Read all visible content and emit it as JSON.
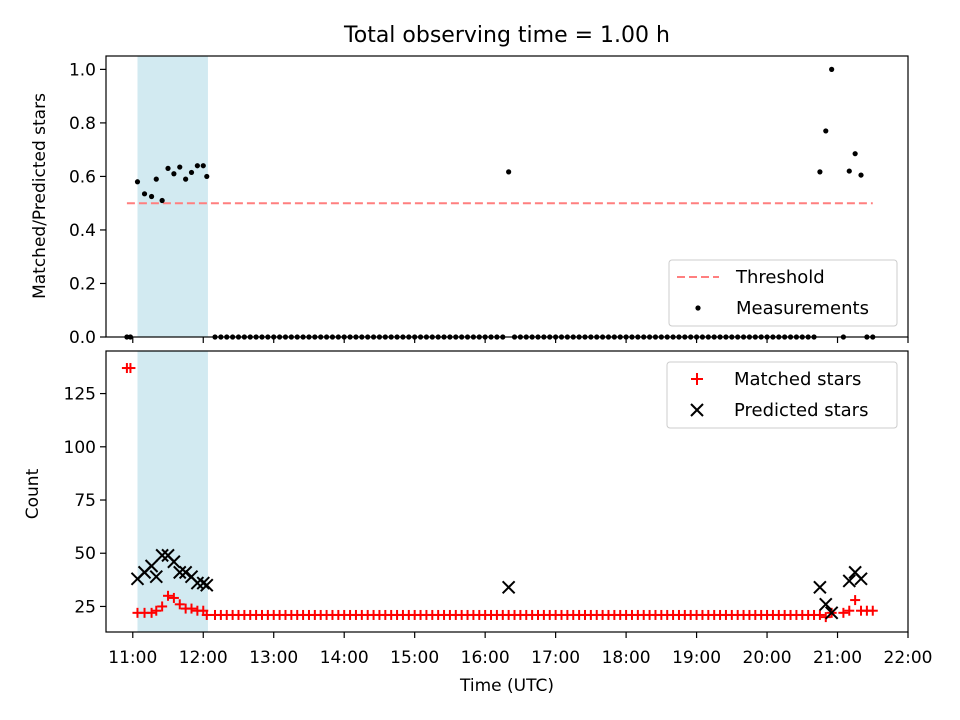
{
  "figure_title": "Total observing time = 1.00 h",
  "chart_data": [
    {
      "type": "scatter",
      "ylabel": "Matched/Predicted stars",
      "ylim": [
        0,
        1.05
      ],
      "yticks": [
        "0.0",
        "0.2",
        "0.4",
        "0.6",
        "0.8",
        "1.0"
      ],
      "x_range_hours": [
        10.62,
        22.0
      ],
      "shaded_interval": {
        "start": "11:04",
        "end": "12:04",
        "color": "#add8e6"
      },
      "threshold": {
        "name": "Threshold",
        "value": 0.5,
        "x_start": "10:55",
        "x_end": "21:30",
        "color": "#ff7f7f",
        "style": "dashed"
      },
      "legend": {
        "position": "lower-right",
        "entries": [
          "Threshold",
          "Measurements"
        ]
      },
      "series": [
        {
          "name": "Measurements",
          "color": "#000000",
          "points": [
            [
              "10:55",
              0.0
            ],
            [
              "10:58",
              0.0
            ],
            [
              "11:04",
              0.58
            ],
            [
              "11:10",
              0.535
            ],
            [
              "11:16",
              0.525
            ],
            [
              "11:20",
              0.59
            ],
            [
              "11:25",
              0.51
            ],
            [
              "11:30",
              0.63
            ],
            [
              "11:35",
              0.61
            ],
            [
              "11:40",
              0.635
            ],
            [
              "11:45",
              0.59
            ],
            [
              "11:50",
              0.615
            ],
            [
              "11:55",
              0.64
            ],
            [
              "12:00",
              0.64
            ],
            [
              "12:03",
              0.6
            ],
            [
              "16:20",
              0.617
            ],
            [
              "20:45",
              0.617
            ],
            [
              "20:50",
              0.77
            ],
            [
              "20:55",
              1.0
            ],
            [
              "21:05",
              0.0
            ],
            [
              "21:10",
              0.62
            ],
            [
              "21:15",
              0.685
            ],
            [
              "21:20",
              0.605
            ],
            [
              "21:25",
              0.0
            ],
            [
              "21:30",
              0.0
            ]
          ],
          "zero_runs": [
            {
              "from": "12:10",
              "to": "16:15",
              "step_minutes": 5
            },
            {
              "from": "16:25",
              "to": "20:40",
              "step_minutes": 5
            }
          ]
        }
      ]
    },
    {
      "type": "scatter",
      "xlabel": "Time (UTC)",
      "ylabel": "Count",
      "ylim": [
        13,
        145
      ],
      "yticks": [
        "25",
        "50",
        "75",
        "100",
        "125"
      ],
      "xticks": [
        "11:00",
        "12:00",
        "13:00",
        "14:00",
        "15:00",
        "16:00",
        "17:00",
        "18:00",
        "19:00",
        "20:00",
        "21:00",
        "22:00"
      ],
      "shaded_interval": {
        "start": "11:04",
        "end": "12:04",
        "color": "#add8e6"
      },
      "legend": {
        "position": "top-right",
        "entries": [
          "Matched stars",
          "Predicted stars"
        ]
      },
      "series": [
        {
          "name": "Matched stars",
          "marker": "plus",
          "color": "#ff0000",
          "points": [
            [
              "10:55",
              137
            ],
            [
              "10:58",
              137
            ],
            [
              "11:04",
              22
            ],
            [
              "11:10",
              22
            ],
            [
              "11:16",
              22
            ],
            [
              "11:20",
              23
            ],
            [
              "11:25",
              25
            ],
            [
              "11:30",
              30
            ],
            [
              "11:35",
              29
            ],
            [
              "11:40",
              26
            ],
            [
              "11:45",
              24
            ],
            [
              "11:50",
              24
            ],
            [
              "11:55",
              23
            ],
            [
              "12:00",
              23
            ],
            [
              "12:03",
              21
            ],
            [
              "20:50",
              20
            ],
            [
              "20:55",
              22
            ],
            [
              "21:05",
              22
            ],
            [
              "21:10",
              23
            ],
            [
              "21:15",
              28
            ],
            [
              "21:20",
              23
            ],
            [
              "21:25",
              23
            ],
            [
              "21:30",
              23
            ]
          ],
          "baseline_runs": [
            {
              "from": "12:10",
              "to": "20:45",
              "step_minutes": 5,
              "value": 21
            }
          ]
        },
        {
          "name": "Predicted stars",
          "marker": "x",
          "color": "#000000",
          "points": [
            [
              "11:04",
              38
            ],
            [
              "11:10",
              41
            ],
            [
              "11:16",
              44
            ],
            [
              "11:20",
              39
            ],
            [
              "11:25",
              49
            ],
            [
              "11:30",
              49
            ],
            [
              "11:35",
              46
            ],
            [
              "11:40",
              41
            ],
            [
              "11:45",
              41
            ],
            [
              "11:50",
              39
            ],
            [
              "11:55",
              36
            ],
            [
              "12:00",
              36
            ],
            [
              "12:03",
              35
            ],
            [
              "16:20",
              34
            ],
            [
              "20:45",
              34
            ],
            [
              "20:50",
              26
            ],
            [
              "20:55",
              22
            ],
            [
              "21:10",
              37
            ],
            [
              "21:15",
              41
            ],
            [
              "21:20",
              38
            ]
          ]
        }
      ]
    }
  ]
}
